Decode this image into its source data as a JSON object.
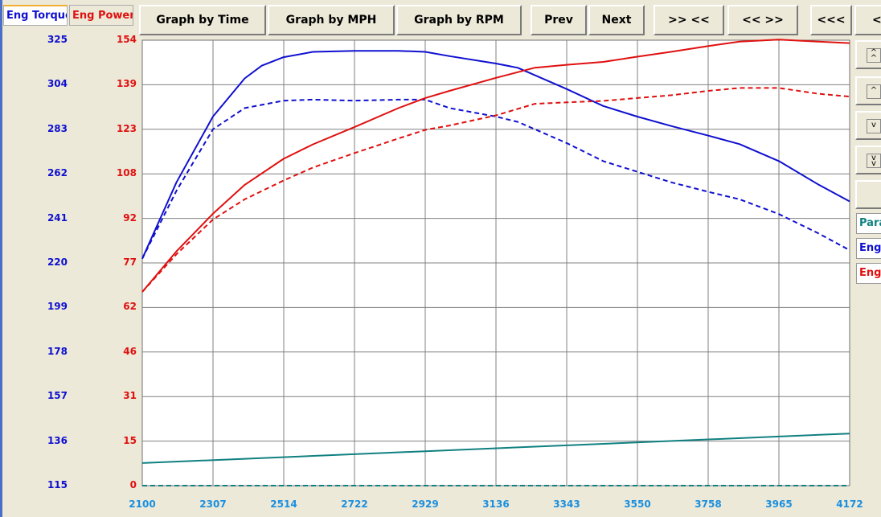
{
  "tabs": {
    "torque_label": "Eng Torque",
    "power_label": "Eng Power"
  },
  "toolbar": {
    "graph_time": "Graph by Time",
    "graph_mph": "Graph by MPH",
    "graph_rpm": "Graph by RPM",
    "prev": "Prev",
    "next": "Next",
    "zoom_in": ">> <<",
    "zoom_out": "<< >>",
    "scroll_left_far": "<<<",
    "scroll_left": "<"
  },
  "side_panel": {
    "param_label": "Para",
    "series_torque_label": "Eng",
    "series_power_label": "Eng"
  },
  "colors": {
    "torque": "#1010d0",
    "power": "#e01010",
    "param": "#108080",
    "grid": "#808080",
    "x_labels": "#1a8fe0"
  },
  "chart_data": {
    "type": "line",
    "x_ticks": [
      "2100",
      "2307",
      "2514",
      "2722",
      "2929",
      "3136",
      "3343",
      "3550",
      "3758",
      "3965",
      "4172"
    ],
    "y_left_ticks": [
      "325",
      "304",
      "283",
      "262",
      "241",
      "220",
      "199",
      "178",
      "157",
      "136",
      "115"
    ],
    "y_right_ticks": [
      "154",
      "139",
      "123",
      "108",
      "92",
      "77",
      "62",
      "46",
      "31",
      "15",
      "0"
    ],
    "xlim": [
      2100,
      4172
    ],
    "ylim_left": [
      115,
      325
    ],
    "ylim_right": [
      0,
      154
    ],
    "grid": true,
    "series": [
      {
        "key": "torque_solid",
        "axis": "left",
        "color": "#1010d0",
        "dash": false,
        "x": [
          2100,
          2200,
          2307,
          2400,
          2450,
          2514,
          2600,
          2722,
          2850,
          2929,
          3000,
          3136,
          3200,
          3343,
          3450,
          3550,
          3650,
          3758,
          3850,
          3965,
          4080,
          4172
        ],
        "y": [
          222,
          258,
          289,
          307,
          313,
          317,
          319.5,
          320,
          320,
          319.5,
          317.5,
          314,
          312,
          302,
          294,
          289,
          284.5,
          280,
          276,
          268,
          257,
          249
        ]
      },
      {
        "key": "torque_dashed",
        "axis": "left",
        "color": "#1010d0",
        "dash": true,
        "x": [
          2100,
          2200,
          2307,
          2400,
          2514,
          2600,
          2722,
          2850,
          2929,
          3000,
          3136,
          3200,
          3343,
          3450,
          3550,
          3650,
          3758,
          3850,
          3965,
          4080,
          4172
        ],
        "y": [
          222,
          254,
          283,
          293,
          296.5,
          297,
          296.5,
          297,
          297,
          293,
          289,
          286.5,
          276.5,
          268,
          263,
          258,
          253.5,
          250,
          243,
          234,
          226
        ]
      },
      {
        "key": "power_solid",
        "axis": "right",
        "color": "#e01010",
        "dash": false,
        "x": [
          2100,
          2200,
          2307,
          2400,
          2514,
          2600,
          2722,
          2850,
          2929,
          3000,
          3136,
          3250,
          3343,
          3450,
          3550,
          3650,
          3758,
          3850,
          3965,
          4080,
          4172
        ],
        "y": [
          67,
          81,
          94,
          104,
          113,
          118,
          124,
          130.5,
          134,
          136.5,
          141,
          144.5,
          145.5,
          146.5,
          148.3,
          150,
          152,
          153.5,
          154.2,
          153.5,
          153
        ]
      },
      {
        "key": "power_dashed",
        "axis": "right",
        "color": "#e01010",
        "dash": true,
        "x": [
          2100,
          2200,
          2307,
          2400,
          2514,
          2600,
          2722,
          2850,
          2929,
          3000,
          3136,
          3250,
          3343,
          3450,
          3550,
          3650,
          3758,
          3850,
          3965,
          4080,
          4172
        ],
        "y": [
          67,
          80,
          92,
          99,
          105.5,
          110,
          115,
          120,
          123,
          124.5,
          128,
          132,
          132.5,
          133,
          134,
          135,
          136.5,
          137.5,
          137.5,
          135.5,
          134.5
        ]
      },
      {
        "key": "param",
        "axis": "right",
        "color": "#108080",
        "dash": false,
        "x": [
          2100,
          4172
        ],
        "y": [
          7.8,
          18
        ]
      },
      {
        "key": "zero_line",
        "axis": "right",
        "color": "#108080",
        "dash": true,
        "x": [
          2100,
          4172
        ],
        "y": [
          0,
          0
        ]
      }
    ]
  }
}
